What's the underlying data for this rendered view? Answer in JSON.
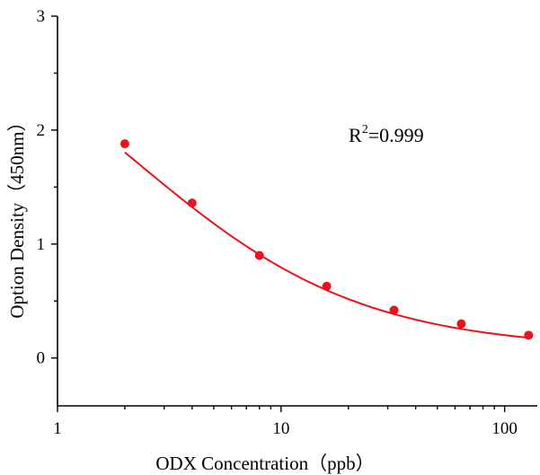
{
  "chart_data": {
    "type": "scatter",
    "title": "",
    "xlabel": "ODX  Concentration（ppb）",
    "ylabel": "Option Density（450nm）",
    "x_scale": "log",
    "xlim": [
      1,
      140
    ],
    "ylim": [
      -0.42,
      3
    ],
    "x_ticks": [
      {
        "value": 1,
        "label": "1"
      },
      {
        "value": 10,
        "label": "10"
      },
      {
        "value": 100,
        "label": "100"
      }
    ],
    "y_ticks": [
      {
        "value": 0,
        "label": "0"
      },
      {
        "value": 1,
        "label": "1"
      },
      {
        "value": 2,
        "label": "2"
      },
      {
        "value": 3,
        "label": "3"
      }
    ],
    "grid": false,
    "annotation": {
      "base": "R",
      "superscript": "2",
      "rest": "=0.999"
    },
    "series": [
      {
        "color": "#e8131b",
        "x": [
          2,
          4,
          8,
          16,
          32,
          64,
          128
        ],
        "y": [
          1.88,
          1.36,
          0.9,
          0.63,
          0.42,
          0.3,
          0.2
        ]
      }
    ],
    "fit_curve": {
      "color": "#e8131b",
      "model": "four-parameter logistic",
      "parameters": {
        "bottom": 0.076,
        "top": 3.4,
        "ec50": 2.2,
        "hill": 0.85
      }
    }
  }
}
